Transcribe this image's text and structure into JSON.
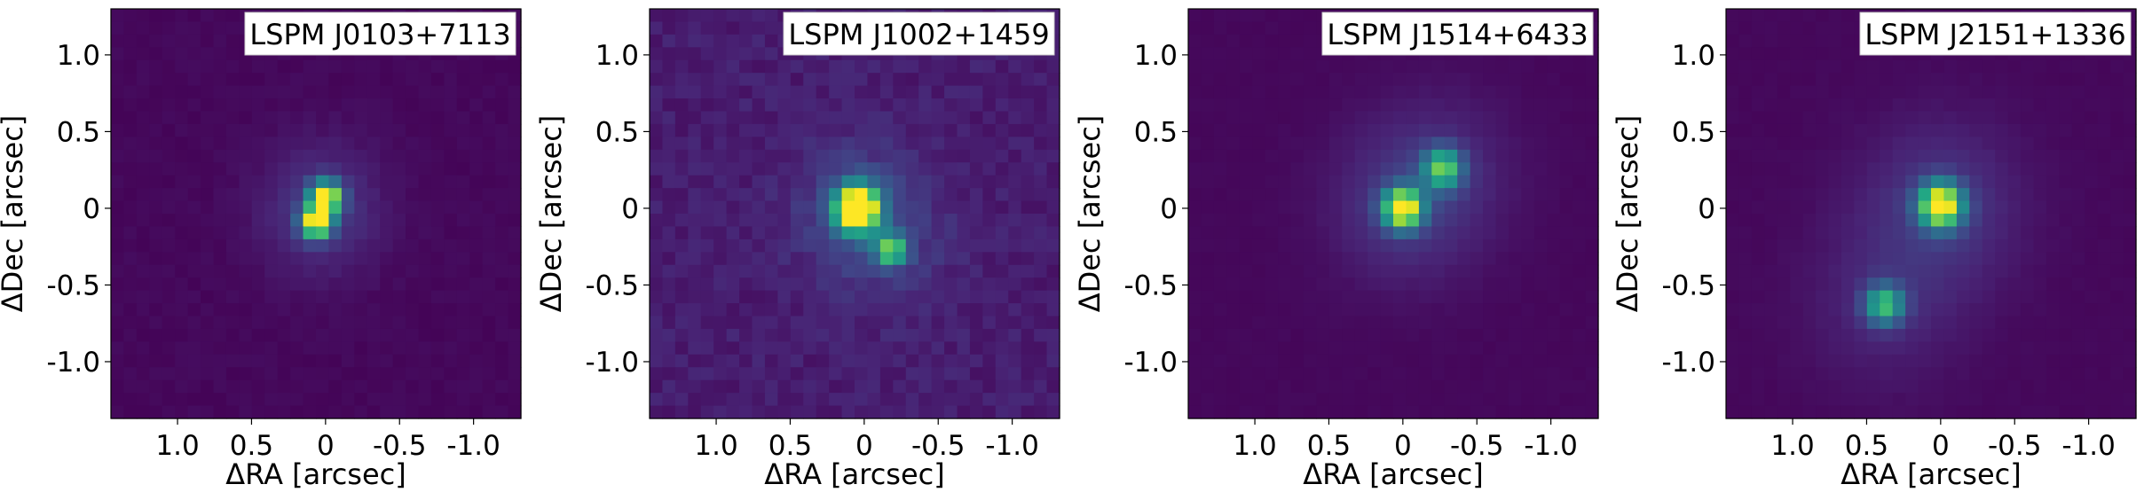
{
  "chart_data": [
    {
      "type": "heatmap",
      "title": "LSPM J0103+7113",
      "xlabel": "ΔRA [arcsec]",
      "ylabel": "ΔDec [arcsec]",
      "x_ticks": [
        {
          "value": 1.0,
          "label": "1.0"
        },
        {
          "value": 0.5,
          "label": "0.5"
        },
        {
          "value": 0,
          "label": "0"
        },
        {
          "value": -0.5,
          "label": "-0.5"
        },
        {
          "value": -1.0,
          "label": "-1.0"
        }
      ],
      "y_ticks": [
        {
          "value": 1.0,
          "label": "1.0"
        },
        {
          "value": 0.5,
          "label": "0.5"
        },
        {
          "value": 0,
          "label": "0"
        },
        {
          "value": -0.5,
          "label": "-0.5"
        },
        {
          "value": -1.0,
          "label": "-1.0"
        }
      ],
      "xlim": [
        1.45,
        -1.32
      ],
      "ylim": [
        -1.37,
        1.3
      ],
      "legend_position": "top-right",
      "background_level": 0.02,
      "noise": 0.012,
      "sources": [
        {
          "dra": 0.0,
          "ddec": 0.07,
          "peak": 1.0,
          "sigma": 0.07
        },
        {
          "dra": 0.06,
          "ddec": -0.09,
          "peak": 1.0,
          "sigma": 0.07
        }
      ],
      "halo_sigma": 0.28,
      "halo_fraction": 0.08
    },
    {
      "type": "heatmap",
      "title": "LSPM J1002+1459",
      "xlabel": "ΔRA [arcsec]",
      "ylabel": "ΔDec [arcsec]",
      "x_ticks": [
        {
          "value": 1.0,
          "label": "1.0"
        },
        {
          "value": 0.5,
          "label": "0.5"
        },
        {
          "value": 0,
          "label": "0"
        },
        {
          "value": -0.5,
          "label": "-0.5"
        },
        {
          "value": -1.0,
          "label": "-1.0"
        }
      ],
      "y_ticks": [
        {
          "value": 1.0,
          "label": "1.0"
        },
        {
          "value": 0.5,
          "label": "0.5"
        },
        {
          "value": 0,
          "label": "0"
        },
        {
          "value": -0.5,
          "label": "-0.5"
        },
        {
          "value": -1.0,
          "label": "-1.0"
        }
      ],
      "xlim": [
        1.45,
        -1.32
      ],
      "ylim": [
        -1.37,
        1.3
      ],
      "legend_position": "top-right",
      "background_level": 0.08,
      "noise": 0.035,
      "sources": [
        {
          "dra": 0.05,
          "ddec": 0.0,
          "peak": 1.3,
          "sigma": 0.1
        },
        {
          "dra": -0.18,
          "ddec": -0.27,
          "peak": 0.65,
          "sigma": 0.07
        }
      ],
      "halo_sigma": 0.3,
      "halo_fraction": 0.1
    },
    {
      "type": "heatmap",
      "title": "LSPM J1514+6433",
      "xlabel": "ΔRA [arcsec]",
      "ylabel": "ΔDec [arcsec]",
      "x_ticks": [
        {
          "value": 1.0,
          "label": "1.0"
        },
        {
          "value": 0.5,
          "label": "0.5"
        },
        {
          "value": 0,
          "label": "0"
        },
        {
          "value": -0.5,
          "label": "-0.5"
        },
        {
          "value": -1.0,
          "label": "-1.0"
        }
      ],
      "y_ticks": [
        {
          "value": 1.0,
          "label": "1.0"
        },
        {
          "value": 0.5,
          "label": "0.5"
        },
        {
          "value": 0,
          "label": "0"
        },
        {
          "value": -0.5,
          "label": "-0.5"
        },
        {
          "value": -1.0,
          "label": "-1.0"
        }
      ],
      "xlim": [
        1.45,
        -1.32
      ],
      "ylim": [
        -1.37,
        1.3
      ],
      "legend_position": "top-right",
      "background_level": 0.02,
      "noise": 0.006,
      "sources": [
        {
          "dra": 0.0,
          "ddec": 0.0,
          "peak": 1.0,
          "sigma": 0.09
        },
        {
          "dra": -0.27,
          "ddec": 0.26,
          "peak": 0.65,
          "sigma": 0.09
        }
      ],
      "halo_sigma": 0.35,
      "halo_fraction": 0.12
    },
    {
      "type": "heatmap",
      "title": "LSPM J2151+1336",
      "xlabel": "ΔRA [arcsec]",
      "ylabel": "ΔDec [arcsec]",
      "x_ticks": [
        {
          "value": 1.0,
          "label": "1.0"
        },
        {
          "value": 0.5,
          "label": "0.5"
        },
        {
          "value": 0,
          "label": "0"
        },
        {
          "value": -0.5,
          "label": "-0.5"
        },
        {
          "value": -1.0,
          "label": "-1.0"
        }
      ],
      "y_ticks": [
        {
          "value": 1.0,
          "label": "1.0"
        },
        {
          "value": 0.5,
          "label": "0.5"
        },
        {
          "value": 0,
          "label": "0"
        },
        {
          "value": -0.5,
          "label": "-0.5"
        },
        {
          "value": -1.0,
          "label": "-1.0"
        }
      ],
      "xlim": [
        1.45,
        -1.32
      ],
      "ylim": [
        -1.37,
        1.3
      ],
      "legend_position": "top-right",
      "background_level": 0.02,
      "noise": 0.006,
      "sources": [
        {
          "dra": 0.0,
          "ddec": 0.02,
          "peak": 1.0,
          "sigma": 0.1
        },
        {
          "dra": 0.38,
          "ddec": -0.63,
          "peak": 0.6,
          "sigma": 0.09
        }
      ],
      "halo_sigma": 0.38,
      "halo_fraction": 0.14
    }
  ],
  "colormap": "viridis",
  "colors": {
    "axis": "#000000",
    "background": "#ffffff",
    "label_box": "#ffffff"
  }
}
